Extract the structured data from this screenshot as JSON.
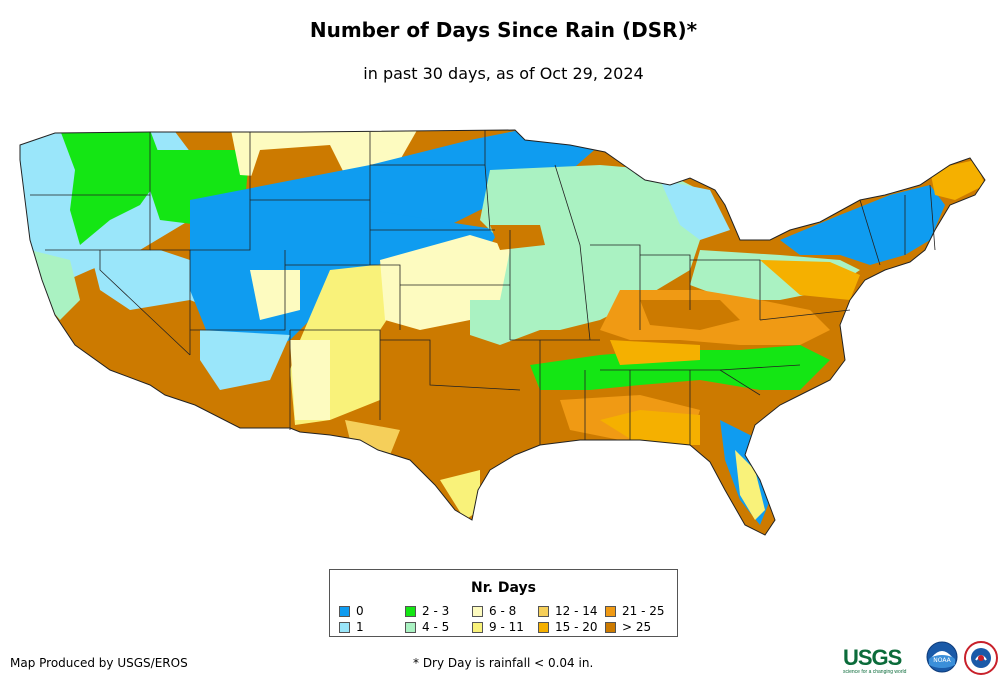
{
  "header": {
    "title": "Number of Days Since Rain (DSR)*",
    "subtitle": "in past 30 days, as of Oct 29, 2024"
  },
  "legend": {
    "title": "Nr. Days",
    "items": [
      {
        "label": "0",
        "color": "#0f9cf0"
      },
      {
        "label": "1",
        "color": "#9ae6fa"
      },
      {
        "label": "2 - 3",
        "color": "#14e614"
      },
      {
        "label": "4 - 5",
        "color": "#aaf2c2"
      },
      {
        "label": "6 - 8",
        "color": "#fdfbc0"
      },
      {
        "label": "9 - 11",
        "color": "#f9f27a"
      },
      {
        "label": "12 - 14",
        "color": "#f5cf5a"
      },
      {
        "label": "15 - 20",
        "color": "#f5b000"
      },
      {
        "label": "21 - 25",
        "color": "#f09a14"
      },
      {
        "label": "> 25",
        "color": "#cc7a00"
      }
    ]
  },
  "footer": {
    "credit": "Map Produced by USGS/EROS",
    "note": "* Dry Day is rainfall < 0.04 in."
  },
  "logos": {
    "usgs_text": "USGS",
    "usgs_tagline": "science for a changing world",
    "noaa_text": "NOAA"
  }
}
